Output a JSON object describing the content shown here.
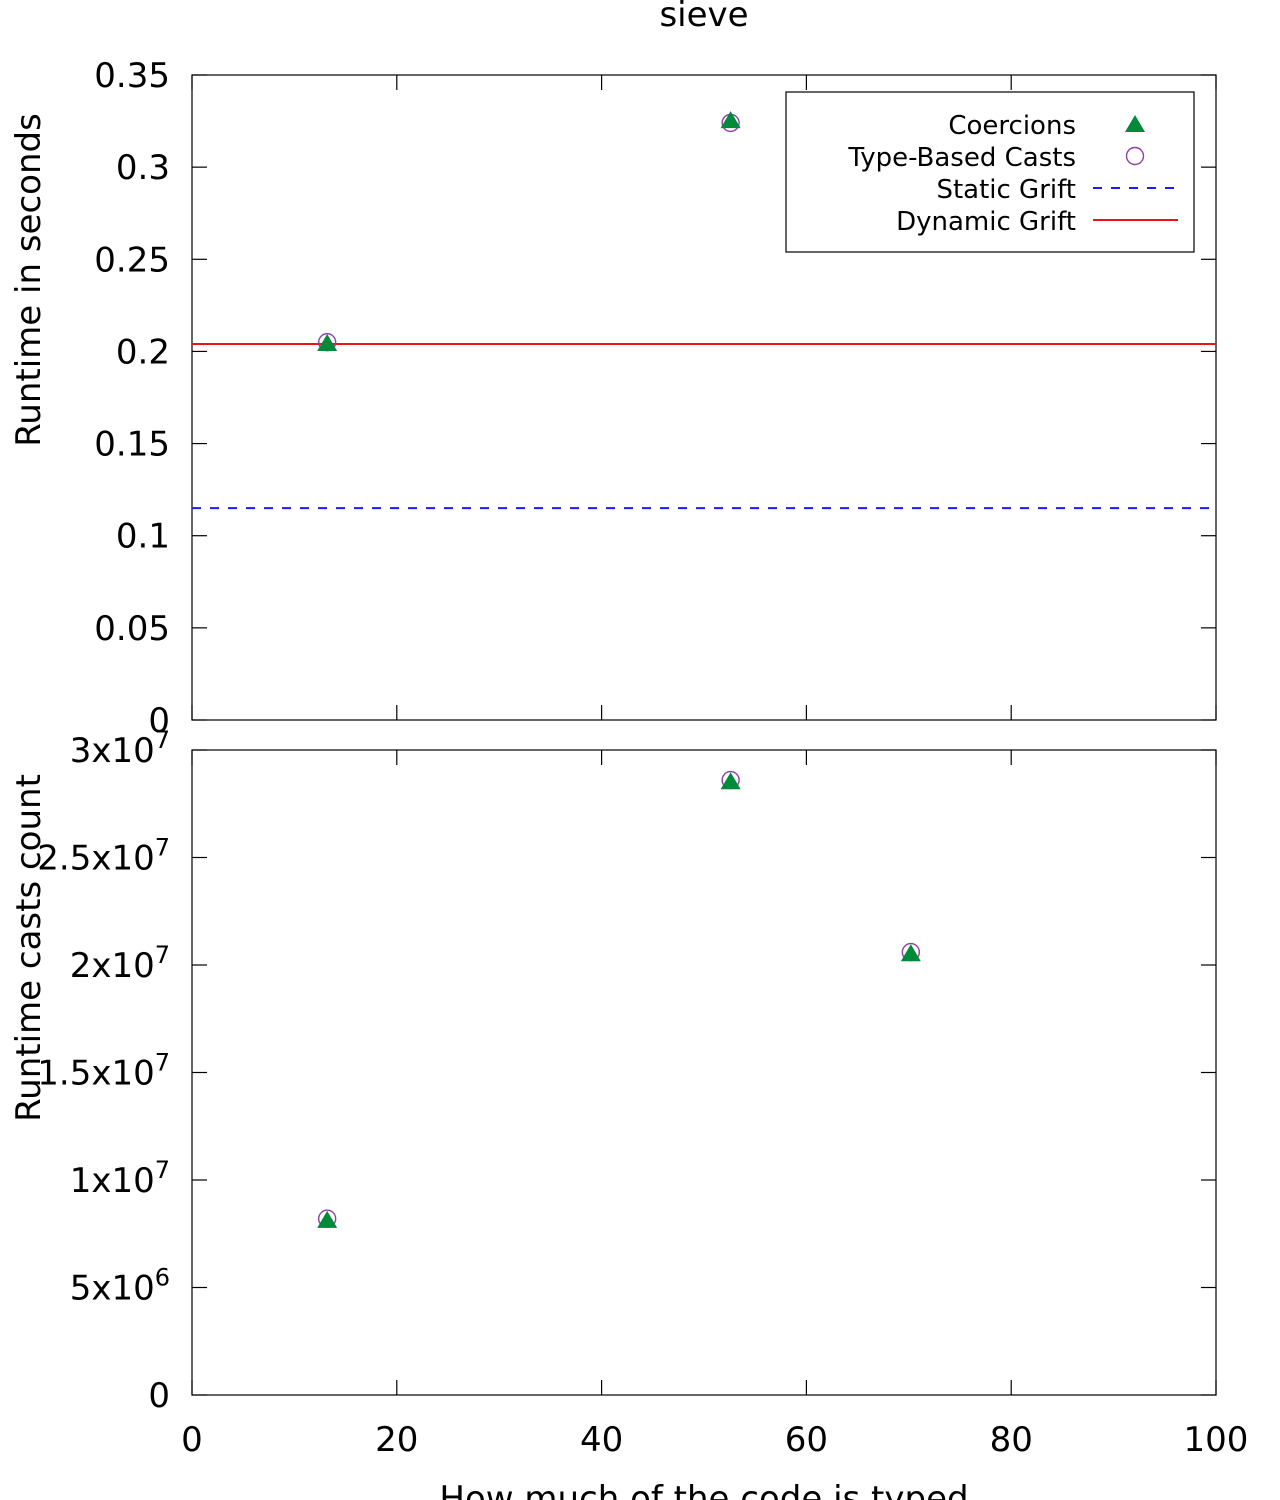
{
  "figure_title": "sieve",
  "colors": {
    "coercions": "#008a3a",
    "type_based_casts": "#8e3fa5",
    "static_grift": "#1a1aff",
    "dynamic_grift": "#e8141c"
  },
  "legend": {
    "coercions": "Coercions",
    "type_based_casts": "Type-Based Casts",
    "static_grift": "Static Grift",
    "dynamic_grift": "Dynamic Grift"
  },
  "chart_data": [
    {
      "type": "scatter",
      "title": "sieve",
      "xlabel": "",
      "ylabel": "Runtime in seconds",
      "xlim": [
        0,
        100
      ],
      "ylim": [
        0,
        0.35
      ],
      "x_ticks": [
        "0",
        "20",
        "40",
        "60",
        "80",
        "100"
      ],
      "y_ticks": [
        {
          "value": 0,
          "label": "0"
        },
        {
          "value": 0.05,
          "label": "0.05"
        },
        {
          "value": 0.1,
          "label": "0.1"
        },
        {
          "value": 0.15,
          "label": "0.15"
        },
        {
          "value": 0.2,
          "label": "0.2"
        },
        {
          "value": 0.25,
          "label": "0.25"
        },
        {
          "value": 0.3,
          "label": "0.3"
        },
        {
          "value": 0.35,
          "label": "0.35"
        }
      ],
      "legend_position": "top-right",
      "series": [
        {
          "name": "Coercions",
          "marker": "triangle",
          "points": [
            {
              "x": 13.2,
              "y": 0.204
            },
            {
              "x": 52.6,
              "y": 0.325
            }
          ]
        },
        {
          "name": "Type-Based Casts",
          "marker": "circle",
          "points": [
            {
              "x": 13.2,
              "y": 0.205
            },
            {
              "x": 52.6,
              "y": 0.324
            }
          ]
        },
        {
          "name": "Static Grift",
          "style": "dashed-line",
          "y": 0.115
        },
        {
          "name": "Dynamic Grift",
          "style": "solid-line",
          "y": 0.204
        }
      ]
    },
    {
      "type": "scatter",
      "xlabel": "How much of the code is typed",
      "ylabel": "Runtime casts count",
      "xlim": [
        0,
        100
      ],
      "ylim": [
        0,
        30000000
      ],
      "x_ticks": [
        "0",
        "20",
        "40",
        "60",
        "80",
        "100"
      ],
      "y_ticks": [
        {
          "value": 0,
          "mantissa": "0",
          "exp": ""
        },
        {
          "value": 5000000,
          "mantissa": "5x10",
          "exp": "6"
        },
        {
          "value": 10000000,
          "mantissa": "1x10",
          "exp": "7"
        },
        {
          "value": 15000000,
          "mantissa": "1.5x10",
          "exp": "7"
        },
        {
          "value": 20000000,
          "mantissa": "2x10",
          "exp": "7"
        },
        {
          "value": 25000000,
          "mantissa": "2.5x10",
          "exp": "7"
        },
        {
          "value": 30000000,
          "mantissa": "3x10",
          "exp": "7"
        }
      ],
      "series": [
        {
          "name": "Coercions",
          "marker": "triangle",
          "points": [
            {
              "x": 13.2,
              "y": 8100000
            },
            {
              "x": 52.6,
              "y": 28500000
            },
            {
              "x": 70.2,
              "y": 20500000
            }
          ]
        },
        {
          "name": "Type-Based Casts",
          "marker": "circle",
          "points": [
            {
              "x": 13.2,
              "y": 8200000
            },
            {
              "x": 52.6,
              "y": 28600000
            },
            {
              "x": 70.2,
              "y": 20600000
            }
          ]
        }
      ]
    }
  ]
}
